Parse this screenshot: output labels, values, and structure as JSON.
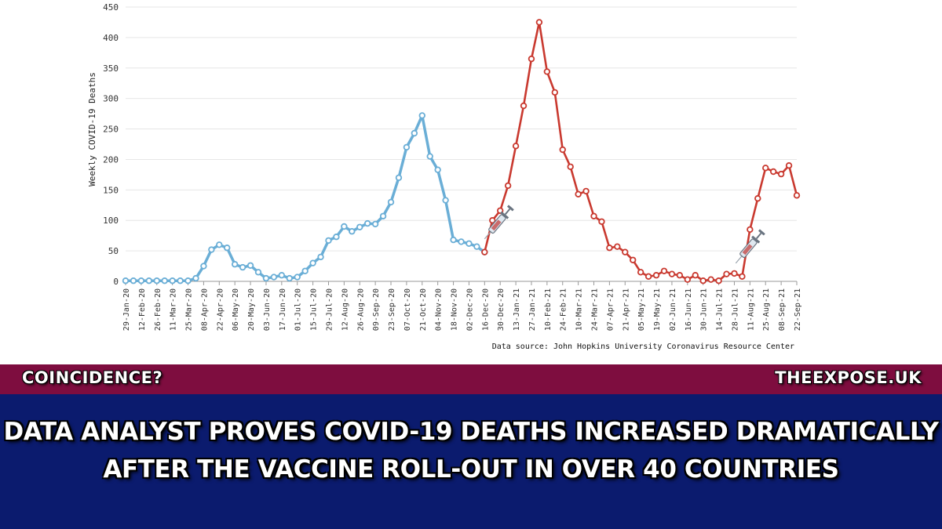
{
  "chart_data": {
    "type": "line",
    "ylabel": "Weekly COVID-19 Deaths",
    "ylim": [
      0,
      450
    ],
    "y_ticks": [
      0,
      50,
      100,
      150,
      200,
      250,
      300,
      350,
      400,
      450
    ],
    "x_tick_labels": [
      "29-Jan-20",
      "12-Feb-20",
      "26-Feb-20",
      "11-Mar-20",
      "25-Mar-20",
      "08-Apr-20",
      "22-Apr-20",
      "06-May-20",
      "20-May-20",
      "03-Jun-20",
      "17-Jun-20",
      "01-Jul-20",
      "15-Jul-20",
      "29-Jul-20",
      "12-Aug-20",
      "26-Aug-20",
      "09-Sep-20",
      "23-Sep-20",
      "07-Oct-20",
      "21-Oct-20",
      "04-Nov-20",
      "18-Nov-20",
      "02-Dec-20",
      "16-Dec-20",
      "30-Dec-20",
      "13-Jan-21",
      "27-Jan-21",
      "10-Feb-21",
      "24-Feb-21",
      "10-Mar-21",
      "24-Mar-21",
      "07-Apr-21",
      "21-Apr-21",
      "05-May-21",
      "19-May-21",
      "02-Jun-21",
      "16-Jun-21",
      "30-Jun-21",
      "14-Jul-21",
      "28-Jul-21",
      "11-Aug-21",
      "25-Aug-21",
      "08-Sep-21",
      "22-Sep-21"
    ],
    "grid": true,
    "series": [
      {
        "color": "#6aaed6",
        "values": [
          1,
          1,
          1,
          1,
          1,
          1,
          1,
          1,
          1,
          5,
          25,
          52,
          60,
          55,
          28,
          23,
          26,
          15,
          5,
          7,
          10,
          5,
          7,
          17,
          30,
          40,
          67,
          73,
          90,
          82,
          89,
          95,
          94,
          107,
          130,
          170,
          220,
          243,
          272,
          205,
          183,
          133,
          68,
          65,
          62,
          57,
          48
        ]
      },
      {
        "color": "#c9392f",
        "values": [
          48,
          100,
          116,
          157,
          222,
          288,
          365,
          425,
          344,
          310,
          216,
          188,
          143,
          148,
          107,
          98,
          55,
          57,
          48,
          35,
          15,
          8,
          10,
          17,
          12,
          10,
          3,
          10,
          1,
          3,
          1,
          12,
          13,
          8,
          85,
          136,
          186,
          180,
          176,
          190,
          141
        ],
        "start_index": 46
      }
    ],
    "annotation_icons": [
      "syringe-icon",
      "syringe-icon"
    ],
    "source": "Data source: John Hopkins University Coronavirus Resource Center"
  },
  "banner": {
    "left_label": "COINCIDENCE?",
    "right_label": "THEEXPOSE.UK",
    "bar_color": "#7e0d3f"
  },
  "headline": {
    "line1": "DATA ANALYST PROVES COVID-19 DEATHS INCREASED DRAMATICALLY",
    "line2": "AFTER THE VACCINE ROLL-OUT IN OVER 40 COUNTRIES",
    "bg_color": "#0b1b6e"
  }
}
